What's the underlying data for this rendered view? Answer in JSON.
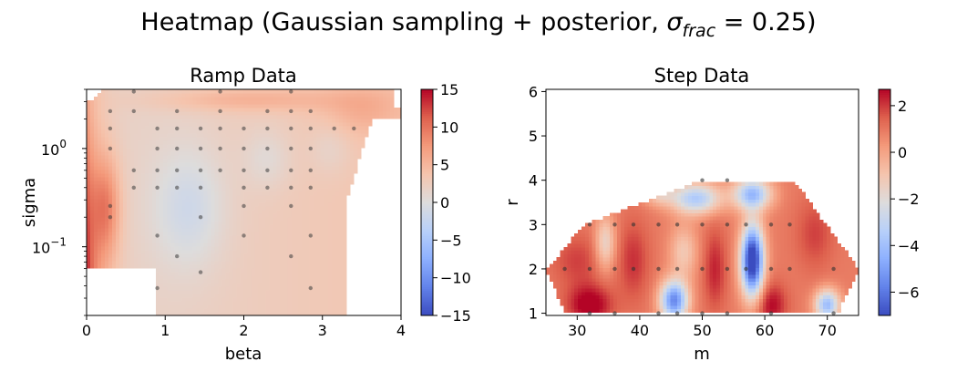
{
  "figure": {
    "title_main": "Heatmap (Gaussian sampling + posterior, ",
    "title_sigma": "σ",
    "title_sub": "frac",
    "title_eq": " = 0.25)"
  },
  "chart_data": [
    {
      "type": "heatmap",
      "title": "Ramp Data",
      "xlabel": "beta",
      "ylabel": "sigma",
      "xlim": [
        0,
        4
      ],
      "ylim": [
        0.02,
        4
      ],
      "yscale": "log",
      "x_ticks": [
        "0",
        "1",
        "2",
        "3",
        "4"
      ],
      "y_ticks": [
        {
          "label": "10",
          "exp": "−1",
          "value": 0.1
        },
        {
          "label": "10",
          "exp": "0",
          "value": 1
        }
      ],
      "colormap": "coolwarm",
      "colorbar": {
        "min": -15,
        "max": 15,
        "ticks": [
          "15",
          "10",
          "5",
          "0",
          "−5",
          "−10",
          "−15"
        ]
      },
      "sample_points": [
        {
          "x": 0.6,
          "y": 3.8
        },
        {
          "x": 1.7,
          "y": 3.8
        },
        {
          "x": 2.6,
          "y": 3.8
        },
        {
          "x": 0.3,
          "y": 2.4
        },
        {
          "x": 0.6,
          "y": 2.4
        },
        {
          "x": 1.15,
          "y": 2.4
        },
        {
          "x": 1.7,
          "y": 2.4
        },
        {
          "x": 2.3,
          "y": 2.4
        },
        {
          "x": 2.6,
          "y": 2.4
        },
        {
          "x": 2.85,
          "y": 2.4
        },
        {
          "x": 0.3,
          "y": 1.6
        },
        {
          "x": 0.9,
          "y": 1.6
        },
        {
          "x": 1.15,
          "y": 1.6
        },
        {
          "x": 1.45,
          "y": 1.6
        },
        {
          "x": 1.7,
          "y": 1.6
        },
        {
          "x": 2.0,
          "y": 1.6
        },
        {
          "x": 2.3,
          "y": 1.6
        },
        {
          "x": 2.6,
          "y": 1.6
        },
        {
          "x": 2.85,
          "y": 1.6
        },
        {
          "x": 3.15,
          "y": 1.6
        },
        {
          "x": 3.4,
          "y": 1.6
        },
        {
          "x": 0.3,
          "y": 1.0
        },
        {
          "x": 0.9,
          "y": 1.0
        },
        {
          "x": 1.15,
          "y": 1.0
        },
        {
          "x": 1.45,
          "y": 1.0
        },
        {
          "x": 1.7,
          "y": 1.0
        },
        {
          "x": 2.0,
          "y": 1.0
        },
        {
          "x": 2.3,
          "y": 1.0
        },
        {
          "x": 2.6,
          "y": 1.0
        },
        {
          "x": 2.85,
          "y": 1.0
        },
        {
          "x": 0.6,
          "y": 0.6
        },
        {
          "x": 0.9,
          "y": 0.6
        },
        {
          "x": 1.15,
          "y": 0.6
        },
        {
          "x": 1.45,
          "y": 0.6
        },
        {
          "x": 1.7,
          "y": 0.6
        },
        {
          "x": 2.0,
          "y": 0.6
        },
        {
          "x": 2.3,
          "y": 0.6
        },
        {
          "x": 2.6,
          "y": 0.6
        },
        {
          "x": 2.85,
          "y": 0.6
        },
        {
          "x": 0.6,
          "y": 0.4
        },
        {
          "x": 0.9,
          "y": 0.4
        },
        {
          "x": 1.15,
          "y": 0.4
        },
        {
          "x": 1.45,
          "y": 0.4
        },
        {
          "x": 2.0,
          "y": 0.4
        },
        {
          "x": 2.3,
          "y": 0.4
        },
        {
          "x": 2.6,
          "y": 0.4
        },
        {
          "x": 2.85,
          "y": 0.4
        },
        {
          "x": 0.3,
          "y": 0.26
        },
        {
          "x": 2.0,
          "y": 0.26
        },
        {
          "x": 2.6,
          "y": 0.26
        },
        {
          "x": 0.3,
          "y": 0.2
        },
        {
          "x": 1.45,
          "y": 0.2
        },
        {
          "x": 0.9,
          "y": 0.13
        },
        {
          "x": 2.0,
          "y": 0.13
        },
        {
          "x": 2.85,
          "y": 0.13
        },
        {
          "x": 1.15,
          "y": 0.08
        },
        {
          "x": 2.6,
          "y": 0.08
        },
        {
          "x": 1.45,
          "y": 0.055
        },
        {
          "x": 0.9,
          "y": 0.038
        },
        {
          "x": 2.85,
          "y": 0.038
        }
      ]
    },
    {
      "type": "heatmap",
      "title": "Step Data",
      "xlabel": "m",
      "ylabel": "r",
      "xlim": [
        25,
        75
      ],
      "ylim": [
        0.95,
        6.05
      ],
      "x_ticks": [
        "30",
        "40",
        "50",
        "60",
        "70"
      ],
      "y_ticks": [
        "1",
        "2",
        "3",
        "4",
        "5",
        "6"
      ],
      "colormap": "coolwarm",
      "colorbar": {
        "min": -7,
        "max": 2.7,
        "ticks": [
          "2",
          "0",
          "−2",
          "−4",
          "−6"
        ]
      },
      "sample_points": [
        {
          "x": 50,
          "y": 4
        },
        {
          "x": 54,
          "y": 4
        },
        {
          "x": 32,
          "y": 3
        },
        {
          "x": 36,
          "y": 3
        },
        {
          "x": 39,
          "y": 3
        },
        {
          "x": 43,
          "y": 3
        },
        {
          "x": 46,
          "y": 3
        },
        {
          "x": 50,
          "y": 3
        },
        {
          "x": 54,
          "y": 3
        },
        {
          "x": 57,
          "y": 3
        },
        {
          "x": 61,
          "y": 3
        },
        {
          "x": 64,
          "y": 3
        },
        {
          "x": 28,
          "y": 2
        },
        {
          "x": 32,
          "y": 2
        },
        {
          "x": 36,
          "y": 2
        },
        {
          "x": 39,
          "y": 2
        },
        {
          "x": 43,
          "y": 2
        },
        {
          "x": 46,
          "y": 2
        },
        {
          "x": 50,
          "y": 2
        },
        {
          "x": 54,
          "y": 2
        },
        {
          "x": 57,
          "y": 2
        },
        {
          "x": 61,
          "y": 2
        },
        {
          "x": 64,
          "y": 2
        },
        {
          "x": 71,
          "y": 2
        },
        {
          "x": 32,
          "y": 1
        },
        {
          "x": 36,
          "y": 1
        },
        {
          "x": 43,
          "y": 1
        },
        {
          "x": 46,
          "y": 1
        },
        {
          "x": 50,
          "y": 1
        },
        {
          "x": 54,
          "y": 1
        },
        {
          "x": 61,
          "y": 1
        },
        {
          "x": 71,
          "y": 1
        }
      ]
    }
  ]
}
